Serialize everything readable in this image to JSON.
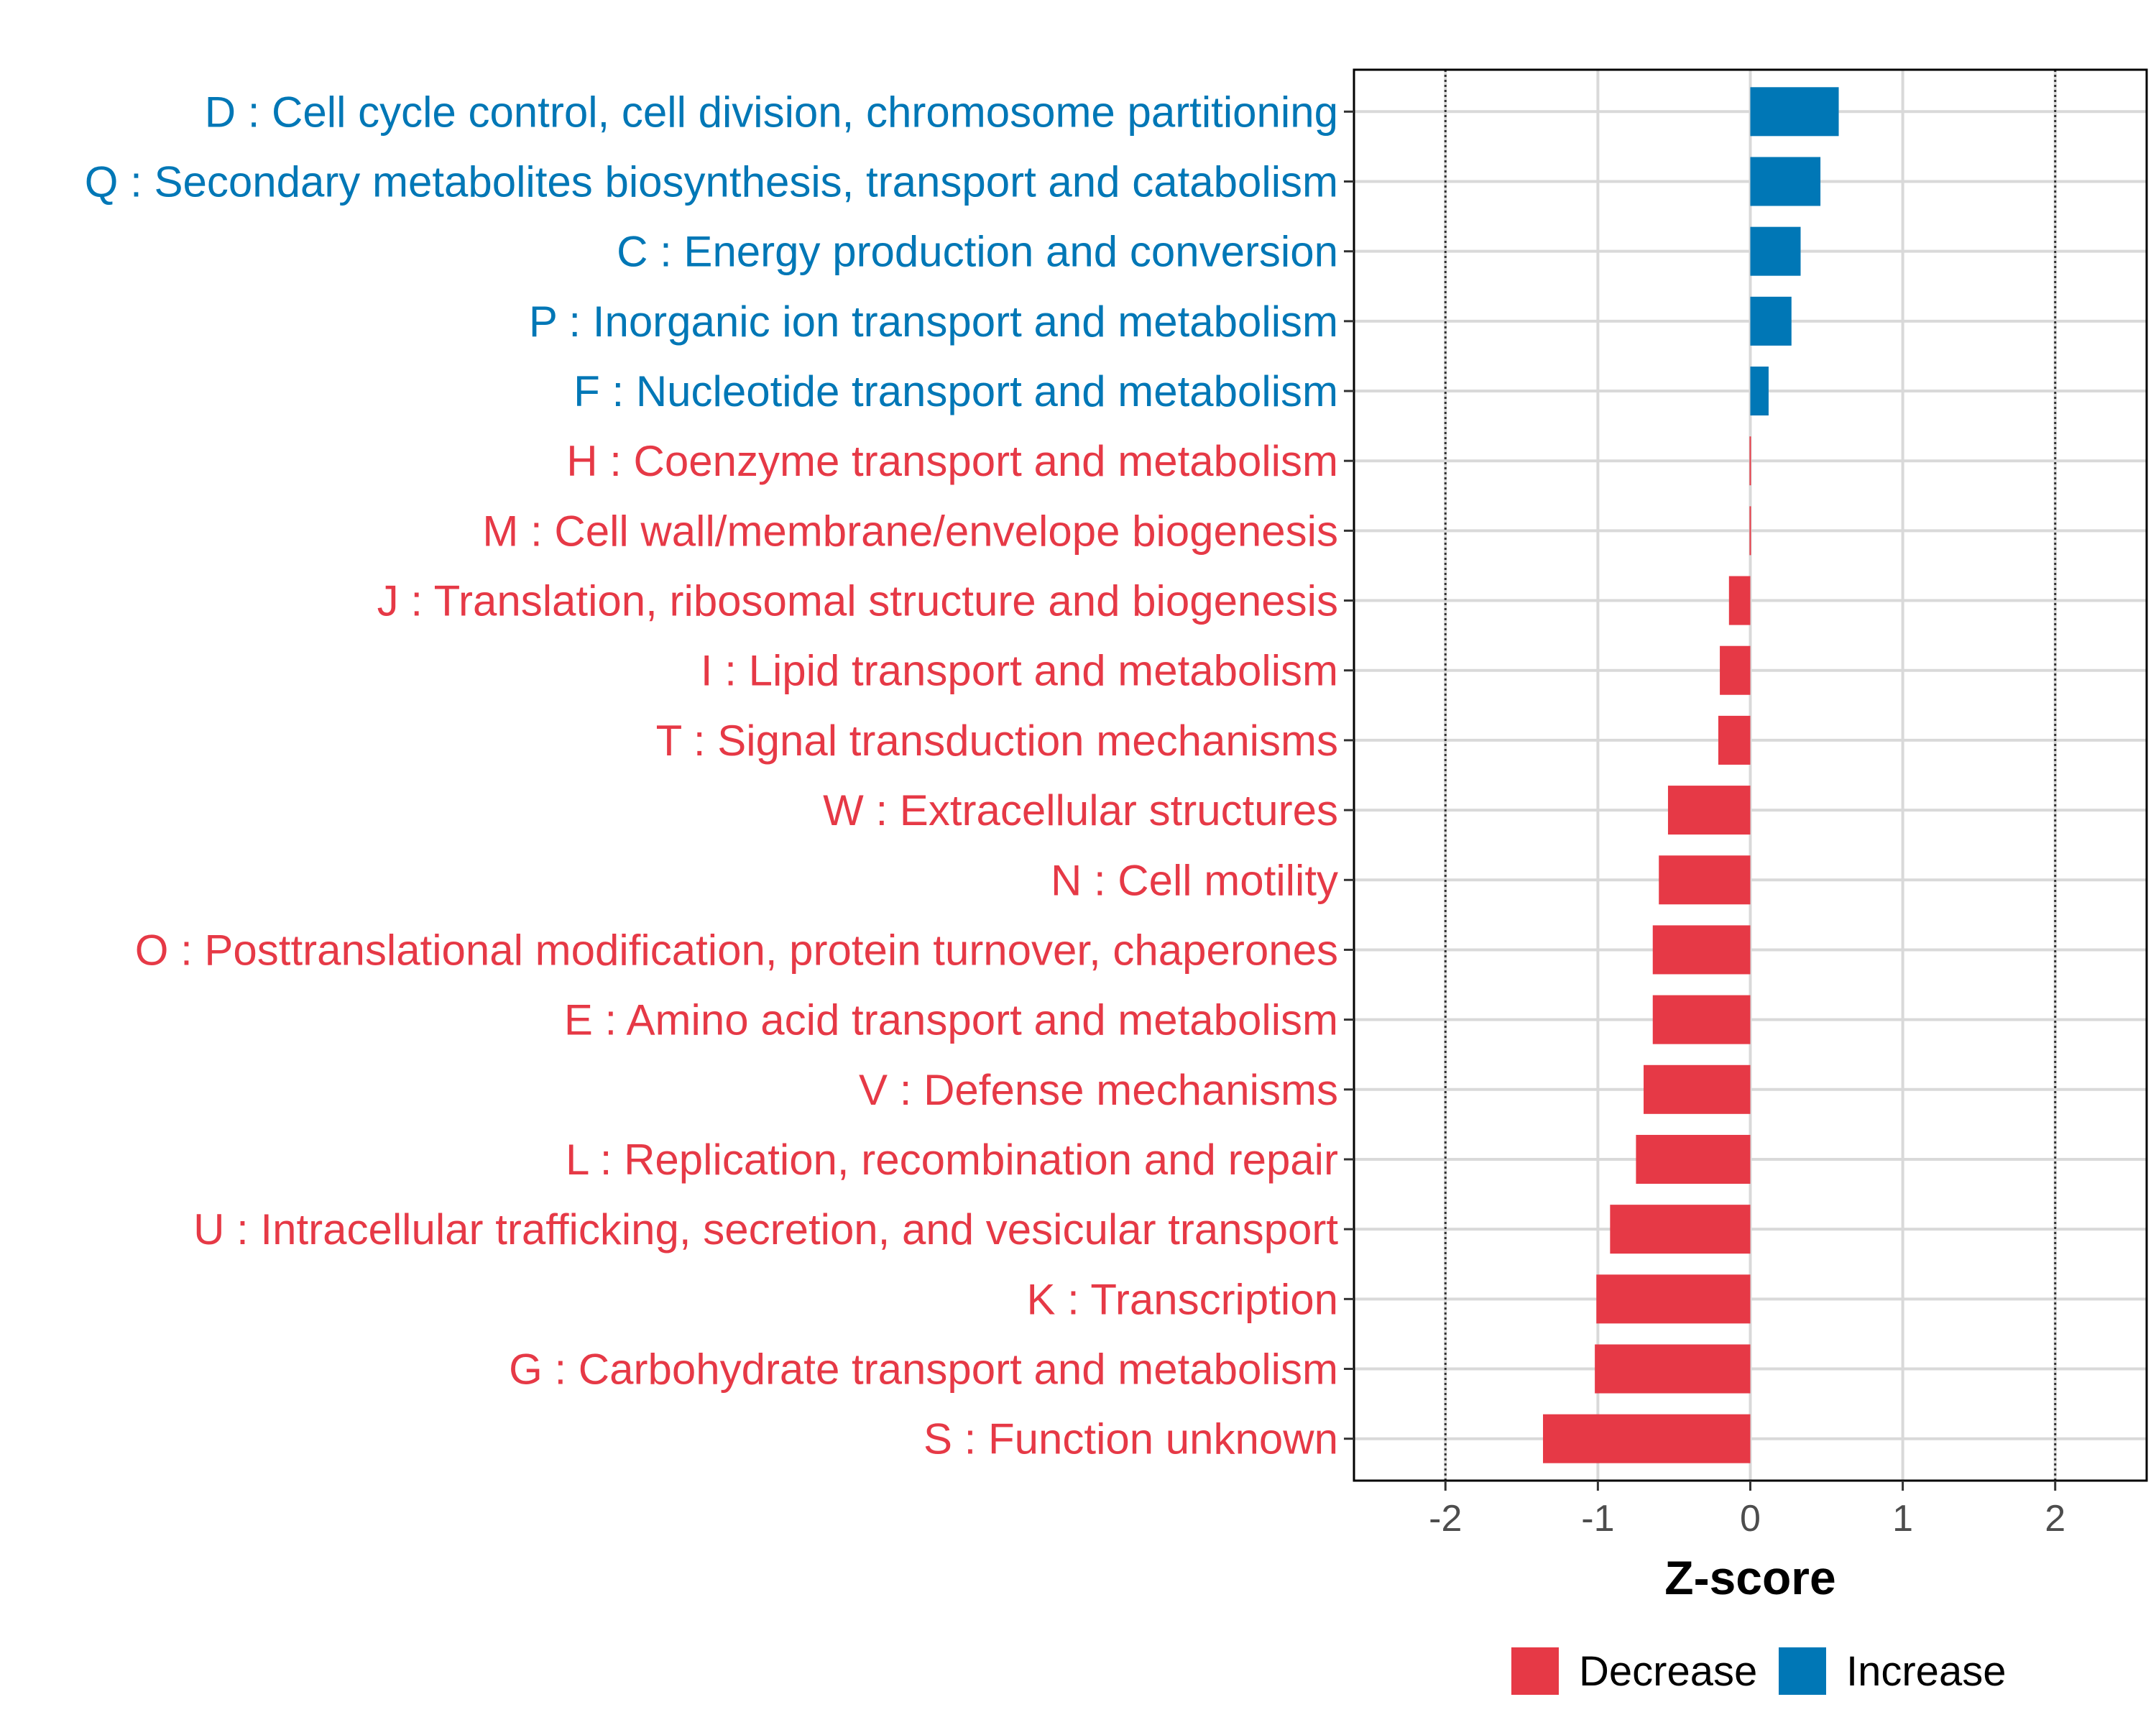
{
  "chart_data": {
    "type": "bar",
    "orientation": "horizontal",
    "xlabel": "Z-score",
    "xlim": [
      -2.6,
      2.6
    ],
    "xticks": [
      -2,
      -1,
      0,
      1,
      2
    ],
    "xtick_labels": [
      "-2",
      "-1",
      "0",
      "1",
      "2"
    ],
    "reference_lines": [
      -2,
      2
    ],
    "grid": true,
    "categories": [
      "D : Cell cycle control, cell division, chromosome partitioning",
      "Q : Secondary metabolites biosynthesis, transport and catabolism",
      "C : Energy production and conversion",
      "P : Inorganic ion transport and metabolism",
      "F : Nucleotide transport and metabolism",
      "H : Coenzyme transport and metabolism",
      "M : Cell wall/membrane/envelope biogenesis",
      "J : Translation, ribosomal structure and biogenesis",
      "I : Lipid transport and metabolism",
      "T : Signal transduction mechanisms",
      "W : Extracellular structures",
      "N : Cell motility",
      "O : Posttranslational modification, protein turnover, chaperones",
      "E : Amino acid transport and metabolism",
      "V : Defense mechanisms",
      "L : Replication, recombination and repair",
      "U : Intracellular trafficking, secretion, and vesicular transport",
      "K : Transcription",
      "G : Carbohydrate transport and metabolism",
      "S : Function unknown"
    ],
    "values": [
      0.58,
      0.46,
      0.33,
      0.27,
      0.12,
      -0.005,
      -0.005,
      -0.14,
      -0.2,
      -0.21,
      -0.54,
      -0.6,
      -0.64,
      -0.64,
      -0.7,
      -0.75,
      -0.92,
      -1.01,
      -1.02,
      -1.36
    ],
    "groups": [
      "Increase",
      "Increase",
      "Increase",
      "Increase",
      "Increase",
      "Decrease",
      "Decrease",
      "Decrease",
      "Decrease",
      "Decrease",
      "Decrease",
      "Decrease",
      "Decrease",
      "Decrease",
      "Decrease",
      "Decrease",
      "Decrease",
      "Decrease",
      "Decrease",
      "Decrease"
    ],
    "legend": {
      "position": "bottom-right",
      "entries": [
        {
          "label": "Decrease",
          "color": "#E63946"
        },
        {
          "label": "Increase",
          "color": "#0077B6"
        }
      ]
    },
    "colors": {
      "Decrease": "#E63946",
      "Increase": "#0077B6"
    }
  }
}
